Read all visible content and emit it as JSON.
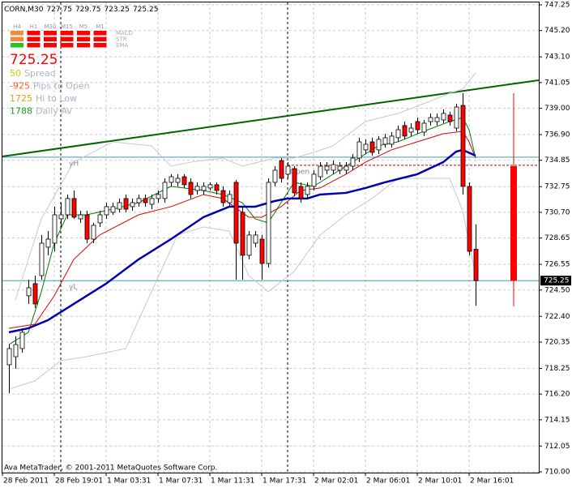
{
  "chart_data": {
    "type": "candlestick",
    "title": "CORN,M30",
    "categories": [
      "28 Feb 2011",
      null,
      null,
      null,
      null,
      null,
      null,
      null,
      "28 Feb 19:01",
      null,
      null,
      null,
      null,
      null,
      null,
      null,
      "1 Mar 03:31",
      null,
      null,
      null,
      null,
      null,
      null,
      null,
      "1 Mar 07:31",
      null,
      null,
      null,
      null,
      null,
      null,
      null,
      "1 Mar 11:31",
      null,
      null,
      null,
      null,
      null,
      null,
      null,
      "1 Mar 17:31",
      null,
      null,
      null,
      null,
      null,
      null,
      null,
      "2 Mar 02:01",
      null,
      null,
      null,
      null,
      null,
      null,
      null,
      "2 Mar 06:01",
      null,
      null,
      null,
      null,
      null,
      null,
      null,
      "2 Mar 10:01",
      null,
      null,
      null,
      null,
      null,
      null,
      null,
      "2 Mar 16:01"
    ],
    "open": [
      718.54,
      719.18,
      719.83,
      724.04,
      725.01,
      725.65,
      727.92,
      728.24,
      730.18,
      730.5,
      731.8,
      730.18,
      730.5,
      728.56,
      729.86,
      730.5,
      730.7,
      730.95,
      731.8,
      731.15,
      731.47,
      731.8,
      731.34,
      731.8,
      731.8,
      733.09,
      733.09,
      733.54,
      733.09,
      732.44,
      732.44,
      732.64,
      732.9,
      732.44,
      731.47,
      733.09,
      730.7,
      727.27,
      728.24,
      728.56,
      726.62,
      733.09,
      734.83,
      733.74,
      734.19,
      732.77,
      732.12,
      732.77,
      733.54,
      734.06,
      734.06,
      734.06,
      734.06,
      734.38,
      735.03,
      735.68,
      736.32,
      735.68,
      736.13,
      736.13,
      736.65,
      737.62,
      737.1,
      737.94,
      737.1,
      737.94,
      737.94,
      738.07,
      738.46,
      737.42,
      739.23,
      732.77,
      727.75
    ],
    "high": [
      720.15,
      720.8,
      721.45,
      725.33,
      725.65,
      728.89,
      729.21,
      731.15,
      731.47,
      732.12,
      732.44,
      730.82,
      730.82,
      729.86,
      730.82,
      731.47,
      731.47,
      731.8,
      732.12,
      731.8,
      732.12,
      732.12,
      732.12,
      732.44,
      733.41,
      733.74,
      733.74,
      733.74,
      733.41,
      733.09,
      733.09,
      733.09,
      733.09,
      732.77,
      732.44,
      733.28,
      731.15,
      729.21,
      729.21,
      728.89,
      733.41,
      734.38,
      735.03,
      734.7,
      734.38,
      733.09,
      733.09,
      734.06,
      734.7,
      734.7,
      734.83,
      734.7,
      734.7,
      735.35,
      736.65,
      736.52,
      736.65,
      736.78,
      736.97,
      737.1,
      737.62,
      737.94,
      737.81,
      738.26,
      738.07,
      738.59,
      738.59,
      738.91,
      738.72,
      739.36,
      740.2,
      733.09,
      729.75
    ],
    "low": [
      716.27,
      718.21,
      719.5,
      723.39,
      723.06,
      725.33,
      727.27,
      727.59,
      729.53,
      730.18,
      730.18,
      729.86,
      728.24,
      728.24,
      729.53,
      730.18,
      730.5,
      730.7,
      730.7,
      730.82,
      731.15,
      731.15,
      730.95,
      731.47,
      731.47,
      732.77,
      732.77,
      732.64,
      731.8,
      732.12,
      732.12,
      732.44,
      732.12,
      731.15,
      731.15,
      725.33,
      725.33,
      726.94,
      727.92,
      725.33,
      726.3,
      732.77,
      733.09,
      733.41,
      731.99,
      731.47,
      731.8,
      732.44,
      733.28,
      733.74,
      733.74,
      733.74,
      733.74,
      734.06,
      734.7,
      735.35,
      735.22,
      735.35,
      735.87,
      735.87,
      736.32,
      736.52,
      736.78,
      736.97,
      736.78,
      737.62,
      737.62,
      737.81,
      737.62,
      737.16,
      732.12,
      727.27,
      723.25
    ],
    "close": [
      719.83,
      720.15,
      721.13,
      724.68,
      723.39,
      728.24,
      728.56,
      730.5,
      730.5,
      731.8,
      730.31,
      730.5,
      728.56,
      729.66,
      730.5,
      731.15,
      731.15,
      731.47,
      730.95,
      731.47,
      731.8,
      731.47,
      731.8,
      732.12,
      733.09,
      733.54,
      733.41,
      732.9,
      732.12,
      732.77,
      732.77,
      732.9,
      732.44,
      731.47,
      732.12,
      728.24,
      727.27,
      728.89,
      728.89,
      726.62,
      733.09,
      734.06,
      733.41,
      734.38,
      732.25,
      731.8,
      732.77,
      733.74,
      734.38,
      734.38,
      734.51,
      734.38,
      734.38,
      735.03,
      736.32,
      736.13,
      735.48,
      736.52,
      736.65,
      736.78,
      737.29,
      736.78,
      737.42,
      737.29,
      737.81,
      738.26,
      738.26,
      738.59,
      737.94,
      739.1,
      732.77,
      727.59,
      725.25
    ],
    "up_color": "#ffffff",
    "down_color": "#ff0000",
    "higher_timeframe_bar": {
      "open": 734.38,
      "high": 740.2,
      "low": 723.2,
      "close": 725.25,
      "color": "#ff0000"
    },
    "lines": [
      {
        "color": "#c8c8c8",
        "width": 1,
        "x": [
          1,
          5,
          10,
          16,
          22,
          25,
          28,
          33,
          36,
          41,
          44,
          47,
          50,
          55,
          60,
          65,
          68,
          70,
          72
        ],
        "values": [
          723.71,
          730.18,
          734.7,
          736.32,
          736.0,
          734.38,
          734.7,
          735.03,
          734.38,
          735.03,
          735.03,
          735.48,
          736.0,
          737.94,
          738.59,
          739.56,
          740.2,
          740.53,
          741.82
        ]
      },
      {
        "color": "#c8c8c8",
        "width": 1,
        "x": [
          0,
          4,
          8,
          12,
          18,
          22,
          26,
          30,
          34,
          37,
          40,
          44,
          48,
          52,
          56,
          60,
          64,
          68,
          70,
          72
        ],
        "values": [
          716.6,
          717.25,
          718.86,
          719.18,
          719.83,
          724.36,
          728.89,
          729.53,
          729.21,
          725.65,
          724.36,
          725.98,
          728.89,
          730.5,
          731.8,
          733.41,
          733.41,
          733.41,
          730.82,
          725.65
        ]
      },
      {
        "color": "#008000",
        "width": 1,
        "x": [
          0,
          3,
          5,
          7,
          9,
          12,
          16,
          20,
          25,
          30,
          33,
          36,
          38,
          40,
          42,
          44,
          47,
          50,
          54,
          57,
          60,
          64,
          68,
          70,
          71,
          72
        ],
        "values": [
          720.15,
          721.13,
          724.36,
          728.24,
          730.5,
          730.5,
          730.95,
          731.47,
          732.77,
          732.44,
          732.12,
          731.47,
          730.18,
          729.86,
          731.47,
          733.09,
          732.77,
          733.74,
          735.03,
          736.01,
          736.32,
          737.16,
          737.94,
          738.26,
          737.29,
          735.03
        ]
      },
      {
        "color": "#e00000",
        "width": 1,
        "x": [
          0,
          4,
          7,
          10,
          14,
          20,
          25,
          30,
          33,
          37,
          39,
          42,
          45,
          48,
          52,
          55,
          59,
          63,
          67,
          70,
          71,
          72
        ],
        "values": [
          721.45,
          721.77,
          724.04,
          726.94,
          728.89,
          730.5,
          731.15,
          732.12,
          731.8,
          730.31,
          730.31,
          731.15,
          732.44,
          732.64,
          733.74,
          734.7,
          735.68,
          736.32,
          736.97,
          737.16,
          736.32,
          735.03
        ]
      },
      {
        "color": "#0000b0",
        "width": 2.5,
        "x": [
          0,
          3,
          6,
          10,
          15,
          20,
          25,
          30,
          34,
          38,
          41,
          43,
          46,
          48,
          52,
          55,
          58,
          63,
          67,
          69,
          70,
          72
        ],
        "values": [
          721.13,
          721.45,
          722.09,
          723.39,
          725.01,
          726.94,
          728.56,
          730.31,
          731.15,
          731.15,
          731.6,
          731.8,
          731.8,
          732.12,
          732.25,
          732.64,
          733.09,
          733.74,
          734.7,
          735.54,
          735.68,
          735.22
        ]
      }
    ],
    "trendline": {
      "values": [
        735.16,
        741.24
      ],
      "color": "#006400"
    },
    "session_starts": [
      8,
      43
    ],
    "levels": [
      {
        "label": "yH",
        "value": 735.1,
        "color": "#3a9ec0"
      },
      {
        "label": "yL",
        "value": 725.25,
        "color": "#3a9ec0"
      },
      {
        "label": "Open",
        "value": 734.45,
        "color": "#c00000"
      }
    ],
    "ylim": [
      710.0,
      747.25
    ],
    "yticks": [
      747.25,
      {
        "value": 745.2,
        "label": "745.20"
      },
      {
        "value": 743.1,
        "label": "743.10"
      },
      741.05,
      {
        "value": 739,
        "label": "739.00"
      },
      {
        "value": 736.9,
        "label": "736.90"
      },
      734.85,
      732.75,
      {
        "value": 730.7,
        "label": "730.70"
      },
      728.65,
      726.55,
      {
        "value": 724.5,
        "label": "724.50"
      },
      {
        "value": 722.4,
        "label": "722.40"
      },
      720.35,
      718.25,
      {
        "value": 716.2,
        "label": "716.20"
      },
      714.15,
      712.05,
      {
        "value": 710,
        "label": "710.00"
      }
    ],
    "grid": true,
    "indicator_panel": {
      "timeframes": [
        "H4",
        "H1",
        "M30",
        "M15",
        "M5",
        "M1"
      ],
      "rows": [
        {
          "name": "MACD",
          "colors": [
            "#f08a3c",
            "#ff0000",
            "#ff0000",
            "#ff0000",
            "#ff0000",
            "#ff0000"
          ]
        },
        {
          "name": "STR",
          "colors": [
            "#f08a3c",
            "#ff0000",
            "#ff0000",
            "#ff0000",
            "#ff0000",
            "#ff0000"
          ]
        },
        {
          "name": "EMA",
          "colors": [
            "#22c422",
            "#ff0000",
            "#ff0000",
            "#ff0000",
            "#ff0000",
            "#ff0000"
          ]
        }
      ]
    },
    "stats": [
      {
        "value": 50,
        "label": "Spread",
        "color": "#e0c000"
      },
      {
        "value": -925,
        "label": "Pips to Open",
        "color": "#ff5a1e"
      },
      {
        "value": 1725,
        "label": "Hi to Low",
        "color": "#e0a000"
      },
      {
        "value": 1788,
        "label": "Daily Av",
        "color": "#1ea01e"
      }
    ],
    "footer": "Ava MetaTrader, © 2001-2011 MetaQuotes Software Corp."
  }
}
